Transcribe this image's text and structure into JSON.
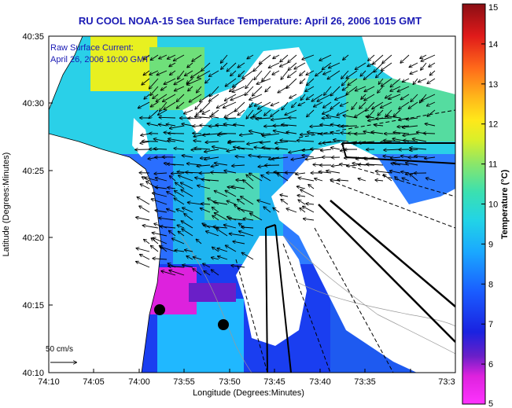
{
  "title": "RU COOL  NOAA-15  Sea Surface Temperature:  April 26, 2006 1015 GMT",
  "legend": {
    "line1": "Raw Surface Current:",
    "line2": "April 26, 2006 10:00 GMT"
  },
  "axes": {
    "xlabel": "Longitude (Degrees:Minutes)",
    "ylabel": "Latitude (Degrees:Minutes)",
    "xticks": [
      "74:10",
      "74:05",
      "74:00",
      "73:55",
      "73:50",
      "73:45",
      "73:40",
      "73:35",
      "73:3"
    ],
    "yticks": [
      "40:35",
      "40:30",
      "40:25",
      "40:20",
      "40:15",
      "40:10"
    ]
  },
  "scale_label": "50 cm/s",
  "colorbar": {
    "label": "Temperature (°C)",
    "ticks": [
      "15",
      "14",
      "13",
      "12",
      "11",
      "10",
      "9",
      "8",
      "7",
      "6",
      "5"
    ],
    "min": 5,
    "max": 15
  },
  "colors": {
    "title": "#1a1ab4",
    "land": "#ffffff"
  }
}
